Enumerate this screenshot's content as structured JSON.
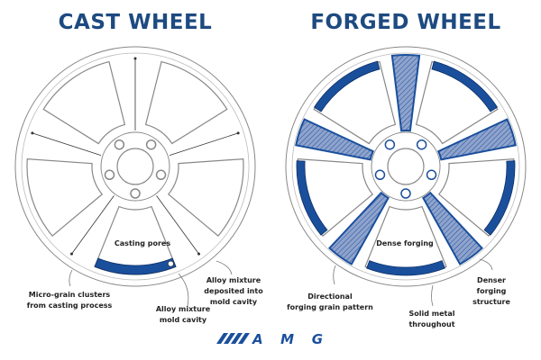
{
  "colors": {
    "accent": "#1a4f9c",
    "title": "#1d4a80",
    "outline": "#888888"
  },
  "cast": {
    "title": "CAST WHEEL",
    "labels": {
      "pores": "Casting pores",
      "micro": "Micro-grain clusters\nfrom casting  process",
      "mold": "Alloy mixture\nmold cavity",
      "deposited": "Alloy mixture\ndeposited into\nmold cavity"
    }
  },
  "forged": {
    "title": "FORGED WHEEL",
    "labels": {
      "dense": "Dense forging",
      "directional": "Directional\nforging grain pattern",
      "solid": "Solid metal\nthroughout",
      "structure": "Denser forging\nstructure"
    }
  },
  "logo": "AMG"
}
